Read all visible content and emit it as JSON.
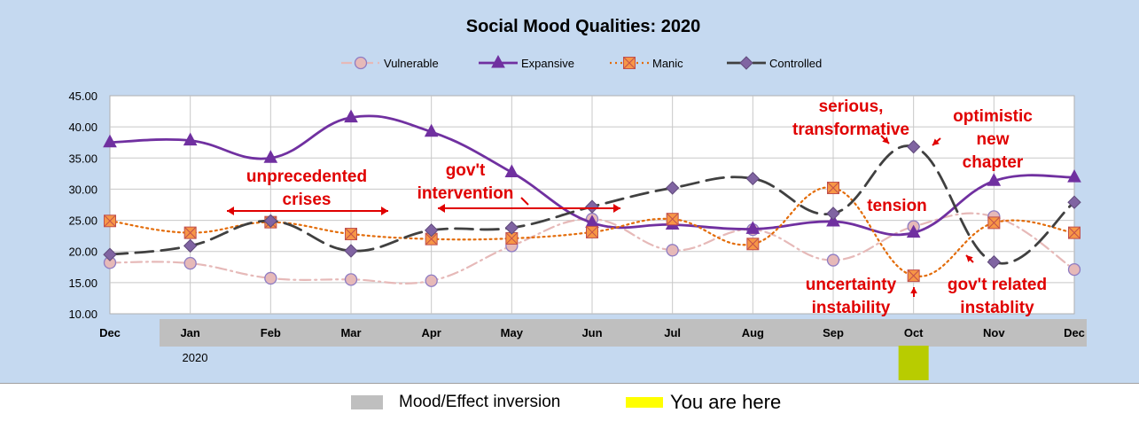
{
  "chart_data": {
    "type": "line",
    "title": "Social Mood Qualities:  2020",
    "categories": [
      "Dec",
      "Jan",
      "Feb",
      "Mar",
      "Apr",
      "May",
      "Jun",
      "Jul",
      "Aug",
      "Sep",
      "Oct",
      "Nov",
      "Dec"
    ],
    "year_label": "2020",
    "ylim": [
      10,
      45
    ],
    "yticks": [
      "10.00",
      "15.00",
      "20.00",
      "25.00",
      "30.00",
      "35.00",
      "40.00",
      "45.00"
    ],
    "ytick_values": [
      10,
      15,
      20,
      25,
      30,
      35,
      40,
      45
    ],
    "grid": true,
    "legend_position": "top",
    "series": [
      {
        "name": "Vulnerable",
        "style": "dash-dot",
        "marker": "circle",
        "color": "#e6b9b8",
        "marker_fill": "#e6b9b8",
        "marker_stroke": "#8e7cc3",
        "values": [
          18.2,
          18.1,
          15.7,
          15.5,
          15.3,
          20.9,
          25.2,
          20.2,
          23.5,
          18.6,
          24.0,
          25.6,
          17.1
        ]
      },
      {
        "name": "Expansive",
        "style": "solid",
        "marker": "triangle",
        "color": "#7030a0",
        "marker_fill": "#7030a0",
        "marker_stroke": "#7030a0",
        "values": [
          37.5,
          37.8,
          35.0,
          41.5,
          39.2,
          32.7,
          24.6,
          24.3,
          23.6,
          24.8,
          23.0,
          31.3,
          31.9
        ]
      },
      {
        "name": "Manic",
        "style": "dotted",
        "marker": "square-x",
        "color": "#e36c09",
        "marker_fill": "#f79646",
        "marker_stroke": "#c0504d",
        "values": [
          24.9,
          23.0,
          24.7,
          22.8,
          22.0,
          22.1,
          23.1,
          25.2,
          21.2,
          30.2,
          16.1,
          24.6,
          23.0
        ]
      },
      {
        "name": "Controlled",
        "style": "dash",
        "marker": "diamond",
        "color": "#404040",
        "marker_fill": "#8064a2",
        "marker_stroke": "#604a7b",
        "values": [
          19.5,
          20.9,
          24.9,
          20.1,
          23.4,
          23.8,
          27.2,
          30.2,
          31.7,
          26.1,
          36.8,
          18.3,
          27.9
        ]
      }
    ],
    "annotations": [
      {
        "id": "unprecedented",
        "text": "unprecedented\ncrises"
      },
      {
        "id": "govt-intervention",
        "text": "gov't\nintervention"
      },
      {
        "id": "serious",
        "text": "serious,\ntransformative"
      },
      {
        "id": "optimistic",
        "text": "optimistic\nnew\nchapter"
      },
      {
        "id": "tension",
        "text": "tension"
      },
      {
        "id": "uncertainty",
        "text": "uncertainty\ninstability"
      },
      {
        "id": "govt-related",
        "text": "gov't related\ninstablity"
      }
    ],
    "inversion_band": {
      "from_index": 0.5,
      "to_index": 12.5
    },
    "you_are_here_index": 10
  },
  "bottom_legend": {
    "inversion_label": "Mood/Effect inversion",
    "inversion_color": "#bfbfbf",
    "here_label": "You are here",
    "here_color": "#ffff00",
    "marker_color": "#b8cc00"
  },
  "colors": {
    "background": "#c5d9f0",
    "plot_area": "#ffffff",
    "annotation": "#e00000"
  }
}
